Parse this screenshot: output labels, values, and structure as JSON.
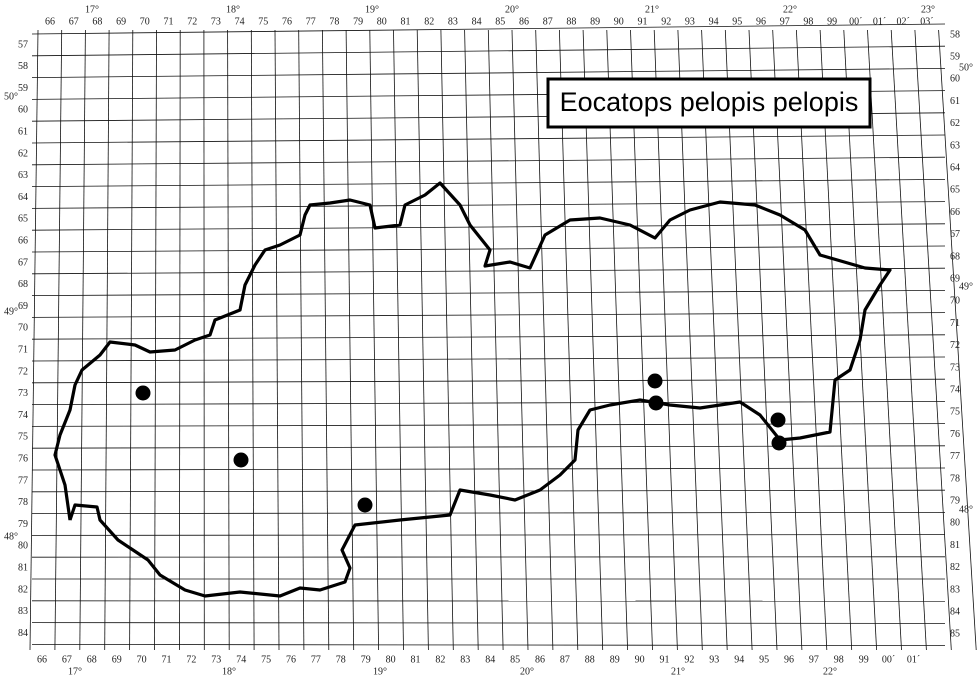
{
  "map": {
    "title": "Eocatops pelopis pelopis",
    "top_labels": [
      "66",
      "67",
      "68",
      "69",
      "70",
      "71",
      "72",
      "73",
      "74",
      "75",
      "76",
      "77",
      "78",
      "79",
      "80",
      "81",
      "82",
      "83",
      "84",
      "85",
      "86",
      "87",
      "88",
      "89",
      "90",
      "91",
      "92",
      "93",
      "94",
      "95",
      "96",
      "97",
      "98",
      "99",
      "00´",
      "01´",
      "02´",
      "03´"
    ],
    "bottom_labels": [
      "66",
      "67",
      "68",
      "69",
      "70",
      "71",
      "72",
      "73",
      "74",
      "75",
      "76",
      "77",
      "78",
      "79",
      "80",
      "81",
      "82",
      "83",
      "84",
      "85",
      "86",
      "87",
      "88",
      "89",
      "90",
      "91",
      "92",
      "93",
      "94",
      "95",
      "96",
      "97",
      "98",
      "99",
      "00´",
      "01´"
    ],
    "left_labels": [
      "57",
      "58",
      "59",
      "60",
      "61",
      "62",
      "63",
      "64",
      "65",
      "66",
      "67",
      "68",
      "69",
      "70",
      "71",
      "72",
      "73",
      "74",
      "75",
      "76",
      "77",
      "78",
      "79",
      "80",
      "81",
      "82",
      "83",
      "84"
    ],
    "right_labels": [
      "58",
      "59",
      "60",
      "61",
      "62",
      "63",
      "64",
      "65",
      "66",
      "67",
      "68",
      "69",
      "70",
      "71",
      "72",
      "73",
      "74",
      "75",
      "76",
      "77",
      "78",
      "79",
      "80",
      "81",
      "82",
      "83",
      "84",
      "85"
    ],
    "degrees_top": [
      "17°",
      "18°",
      "19°",
      "20°",
      "21°",
      "22°",
      "23°"
    ],
    "degrees_bottom": [
      "17°",
      "18°",
      "19°",
      "20°",
      "21°",
      "22°"
    ],
    "degrees_left": [
      "50°",
      "49°",
      "48°"
    ],
    "degrees_right": [
      "50°",
      "49°",
      "48°"
    ]
  }
}
